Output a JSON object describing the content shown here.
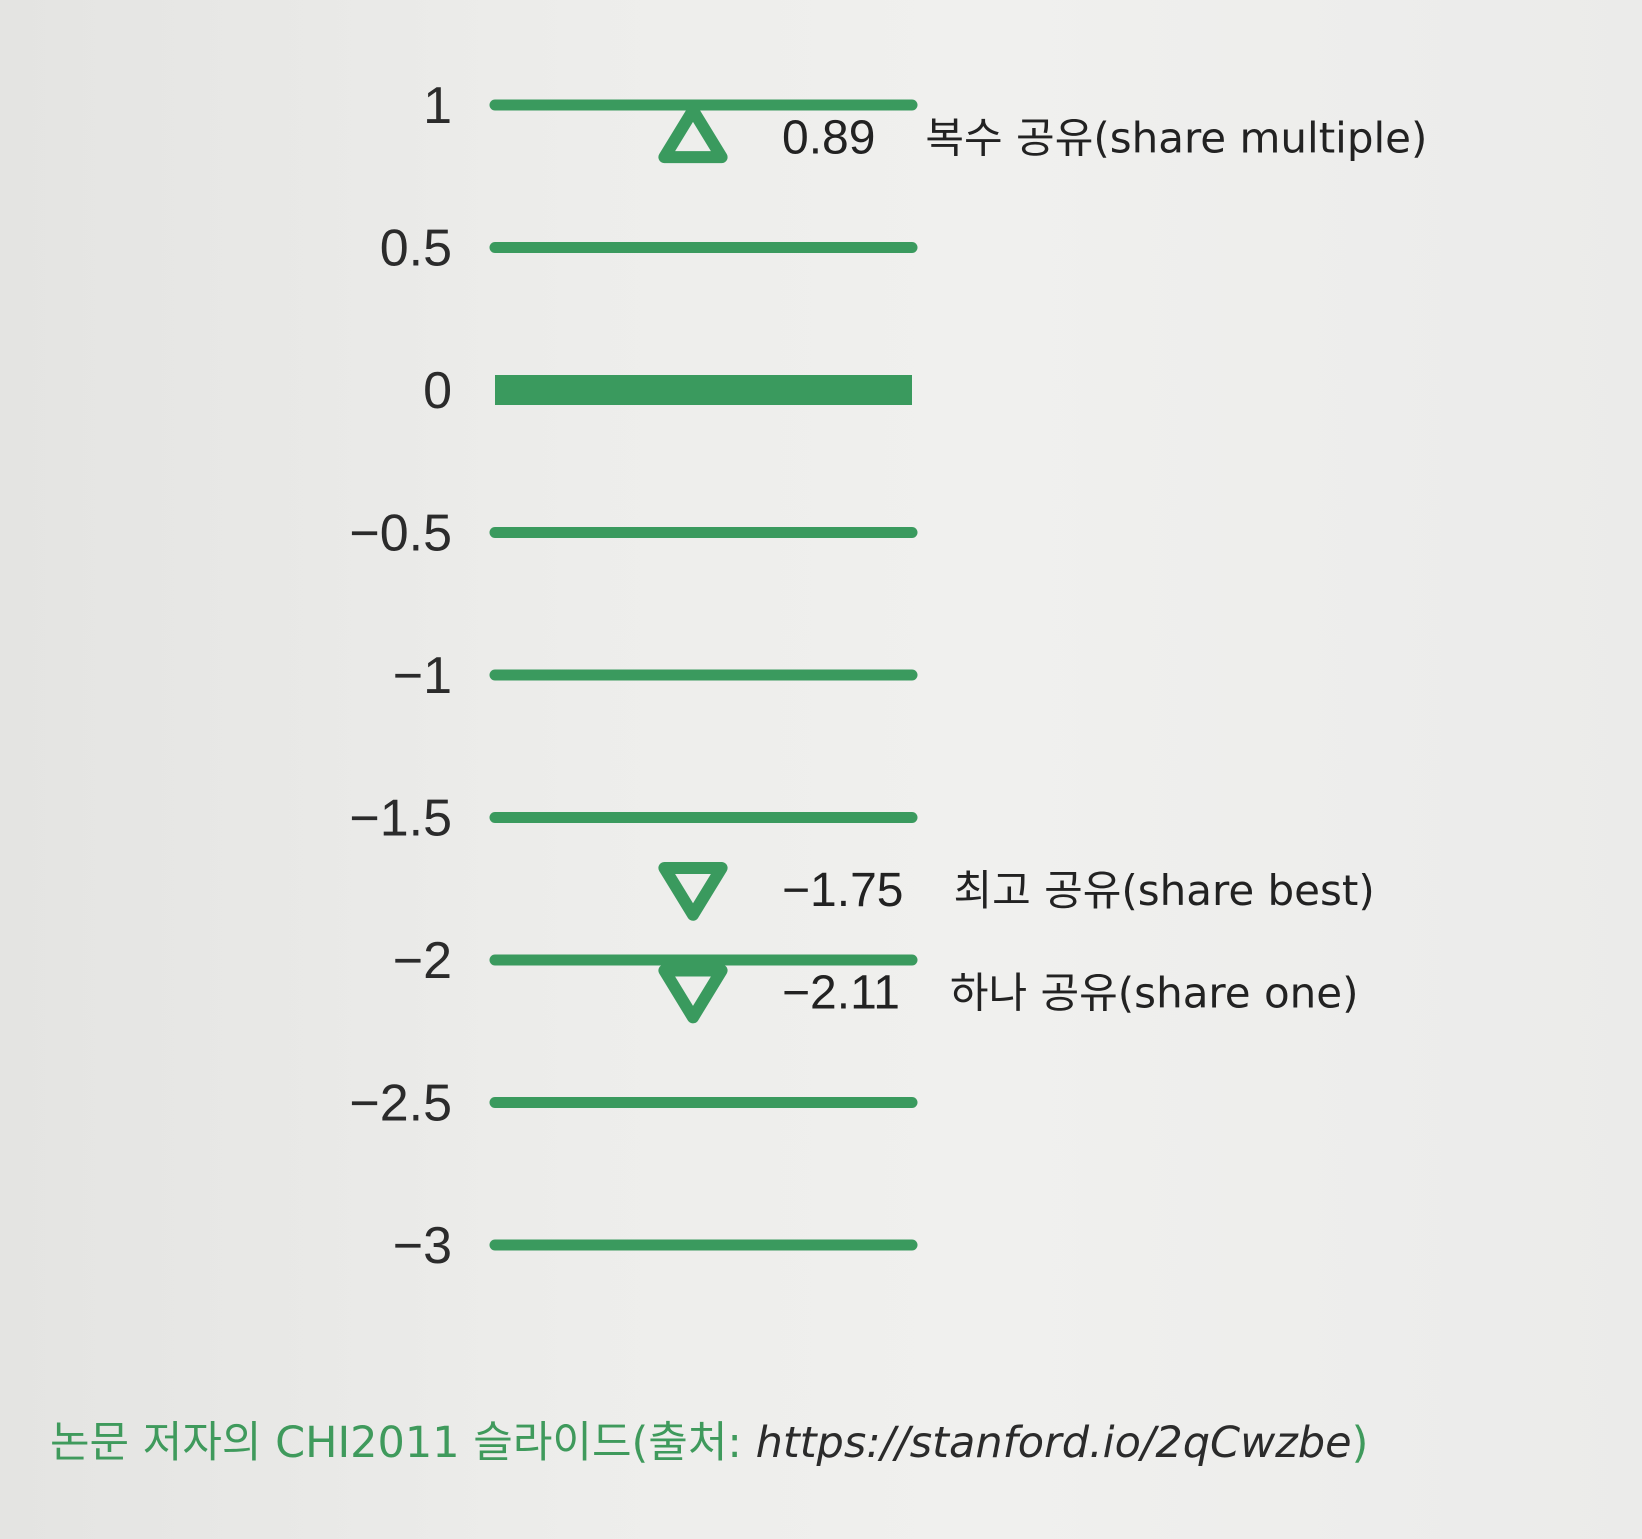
{
  "chart_data": {
    "type": "scatter",
    "ylim": [
      -3,
      1
    ],
    "y_ticks": [
      {
        "value": 1,
        "label": "1"
      },
      {
        "value": 0.5,
        "label": "0.5"
      },
      {
        "value": 0,
        "label": "0"
      },
      {
        "value": -0.5,
        "label": "−0.5"
      },
      {
        "value": -1,
        "label": "−1"
      },
      {
        "value": -1.5,
        "label": "−1.5"
      },
      {
        "value": -2,
        "label": "−2"
      },
      {
        "value": -2.5,
        "label": "−2.5"
      },
      {
        "value": -3,
        "label": "−3"
      }
    ],
    "points": [
      {
        "value": 0.89,
        "value_label": "0.89",
        "label": "복수 공유(share multiple)",
        "marker": "triangle-up"
      },
      {
        "value": -1.75,
        "value_label": "−1.75",
        "label": "최고 공유(share best)",
        "marker": "triangle-down"
      },
      {
        "value": -2.11,
        "value_label": "−2.11",
        "label": "하나 공유(share one)",
        "marker": "triangle-down"
      }
    ],
    "colors": {
      "accent": "#3a9a5e",
      "text": "#222222"
    }
  },
  "caption": {
    "text": "논문 저자의 CHI2011 슬라이드(출처: ",
    "url": "https://stanford.io/2qCwzbe",
    "close": ")"
  }
}
